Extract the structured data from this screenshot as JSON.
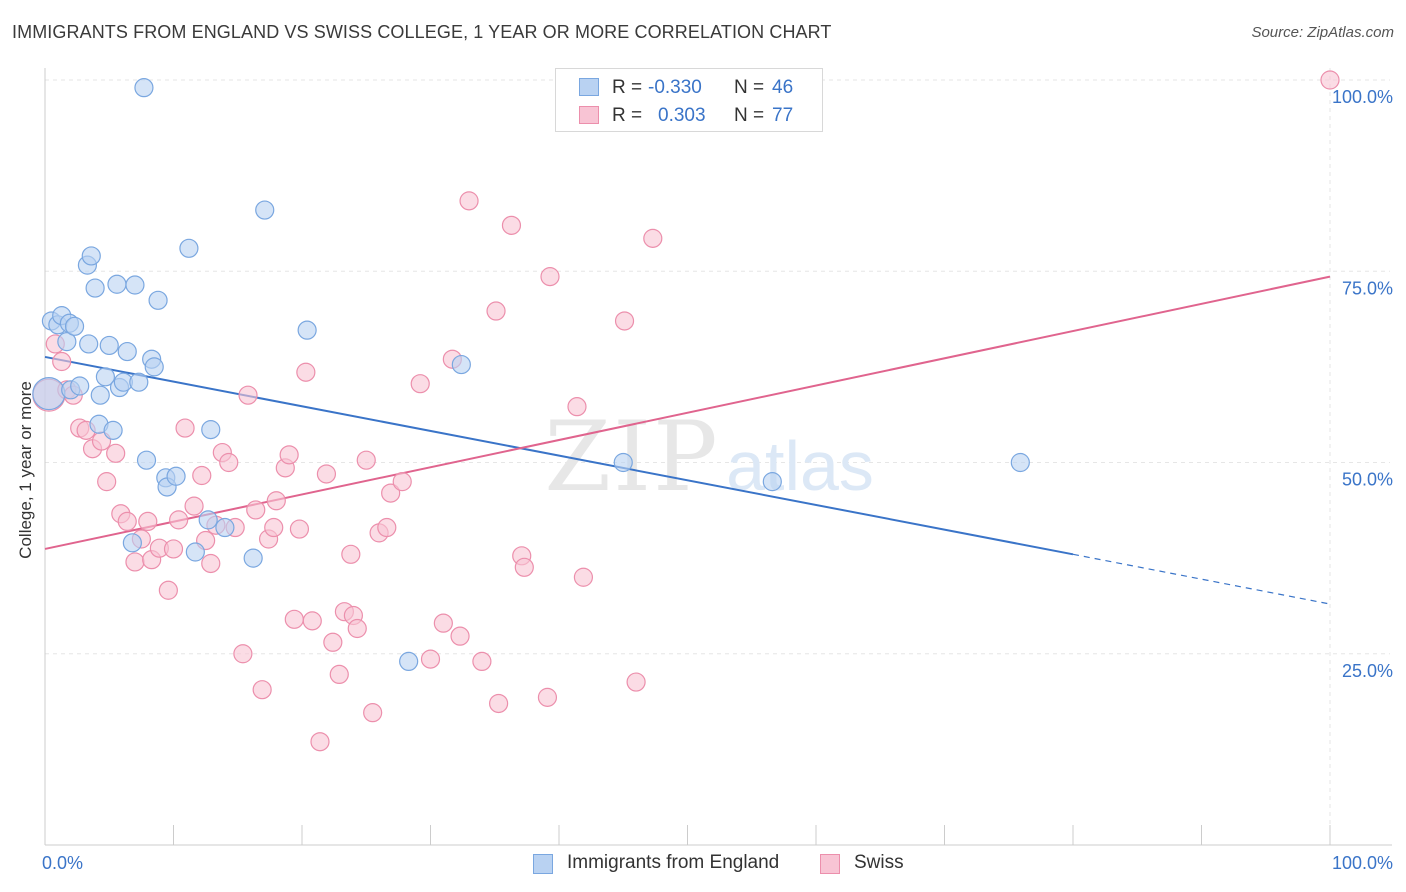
{
  "title": "IMMIGRANTS FROM ENGLAND VS SWISS COLLEGE, 1 YEAR OR MORE CORRELATION CHART",
  "source": "Source: ZipAtlas.com",
  "watermark": {
    "zip": "ZIP",
    "atlas": "atlas"
  },
  "legend": {
    "series": [
      {
        "name": "Immigrants from England",
        "r_label": "R =",
        "r_value": "-0.330",
        "n_label": "N =",
        "n_value": "46",
        "color": "#7aa7e0",
        "fill": "#b9d2f2"
      },
      {
        "name": "Swiss",
        "r_label": "R =",
        "r_value": "0.303",
        "n_label": "N =",
        "n_value": "77",
        "color": "#ec8fac",
        "fill": "#f8c4d4"
      }
    ]
  },
  "chart_data": {
    "type": "scatter",
    "title": "IMMIGRANTS FROM ENGLAND VS SWISS COLLEGE, 1 YEAR OR MORE CORRELATION CHART",
    "xlabel": "",
    "ylabel": "College, 1 year or more",
    "xlim": [
      0,
      100
    ],
    "ylim": [
      0,
      100
    ],
    "x_tick_labels": [
      "0.0%",
      "100.0%"
    ],
    "y_tick_values": [
      25,
      50,
      75,
      100
    ],
    "y_tick_labels": [
      "25.0%",
      "50.0%",
      "75.0%",
      "100.0%"
    ],
    "grid": true,
    "series": [
      {
        "name": "Immigrants from England",
        "color": "#3a74c8",
        "point_fill": "#b9d2f2",
        "point_stroke": "#7aa7e0",
        "trend": {
          "x0": 0,
          "y0": 63.8,
          "x1": 80,
          "y1": 38.0,
          "dash_to": 100,
          "dash_y": 31.5
        },
        "points": [
          [
            0.3,
            59.0,
            16
          ],
          [
            0.5,
            68.5,
            9
          ],
          [
            1.0,
            68.0,
            9
          ],
          [
            1.3,
            69.2,
            9
          ],
          [
            1.7,
            65.8,
            9
          ],
          [
            1.9,
            68.2,
            9
          ],
          [
            2.3,
            67.8,
            9
          ],
          [
            2.0,
            59.5,
            9
          ],
          [
            2.7,
            60.0,
            9
          ],
          [
            3.3,
            75.8,
            9
          ],
          [
            3.6,
            77.0,
            9
          ],
          [
            3.9,
            72.8,
            9
          ],
          [
            3.4,
            65.5,
            9
          ],
          [
            4.3,
            58.8,
            9
          ],
          [
            4.2,
            55.0,
            9
          ],
          [
            5.3,
            54.2,
            9
          ],
          [
            5.0,
            65.3,
            9
          ],
          [
            4.7,
            61.2,
            9
          ],
          [
            5.8,
            59.8,
            9
          ],
          [
            6.1,
            60.5,
            9
          ],
          [
            5.6,
            73.3,
            9
          ],
          [
            6.4,
            64.5,
            9
          ],
          [
            7.0,
            73.2,
            9
          ],
          [
            7.3,
            60.5,
            9
          ],
          [
            8.3,
            63.5,
            9
          ],
          [
            8.5,
            62.5,
            9
          ],
          [
            8.8,
            71.2,
            9
          ],
          [
            7.7,
            99.0,
            9
          ],
          [
            7.9,
            50.3,
            9
          ],
          [
            9.4,
            48.0,
            9
          ],
          [
            9.5,
            46.8,
            9
          ],
          [
            10.2,
            48.2,
            9
          ],
          [
            11.2,
            78.0,
            9
          ],
          [
            12.9,
            54.3,
            9
          ],
          [
            12.7,
            42.5,
            9
          ],
          [
            11.7,
            38.3,
            9
          ],
          [
            14.0,
            41.5,
            9
          ],
          [
            6.8,
            39.5,
            9
          ],
          [
            16.2,
            37.5,
            9
          ],
          [
            17.1,
            83.0,
            9
          ],
          [
            20.4,
            67.3,
            9
          ],
          [
            32.4,
            62.8,
            9
          ],
          [
            28.3,
            24.0,
            9
          ],
          [
            56.6,
            47.5,
            9
          ],
          [
            75.9,
            50.0,
            9
          ],
          [
            45.0,
            50.0,
            9
          ]
        ]
      },
      {
        "name": "Swiss",
        "color": "#e0648e",
        "point_fill": "#f8c4d4",
        "point_stroke": "#ec8fac",
        "trend": {
          "x0": 0,
          "y0": 38.7,
          "x1": 100,
          "y1": 74.3
        },
        "points": [
          [
            0.3,
            58.8,
            16
          ],
          [
            0.8,
            65.5,
            9
          ],
          [
            1.3,
            63.2,
            9
          ],
          [
            1.7,
            59.5,
            9
          ],
          [
            2.2,
            58.8,
            9
          ],
          [
            2.7,
            54.5,
            9
          ],
          [
            3.2,
            54.2,
            9
          ],
          [
            3.7,
            51.8,
            9
          ],
          [
            4.4,
            52.8,
            9
          ],
          [
            5.5,
            51.2,
            9
          ],
          [
            4.8,
            47.5,
            9
          ],
          [
            5.9,
            43.3,
            9
          ],
          [
            6.4,
            42.3,
            9
          ],
          [
            7.0,
            37.0,
            9
          ],
          [
            8.0,
            42.3,
            9
          ],
          [
            7.5,
            40.0,
            9
          ],
          [
            8.3,
            37.3,
            9
          ],
          [
            8.9,
            38.8,
            9
          ],
          [
            9.6,
            33.3,
            9
          ],
          [
            10.0,
            38.7,
            9
          ],
          [
            10.4,
            42.5,
            9
          ],
          [
            10.9,
            54.5,
            9
          ],
          [
            11.6,
            44.3,
            9
          ],
          [
            12.2,
            48.3,
            9
          ],
          [
            12.5,
            39.8,
            9
          ],
          [
            12.9,
            36.8,
            9
          ],
          [
            13.3,
            41.8,
            9
          ],
          [
            13.8,
            51.3,
            9
          ],
          [
            14.3,
            50.0,
            9
          ],
          [
            14.8,
            41.5,
            9
          ],
          [
            15.4,
            25.0,
            9
          ],
          [
            15.8,
            58.8,
            9
          ],
          [
            16.4,
            43.8,
            9
          ],
          [
            16.9,
            20.3,
            9
          ],
          [
            17.4,
            40.0,
            9
          ],
          [
            17.8,
            41.5,
            9
          ],
          [
            18.7,
            49.3,
            9
          ],
          [
            19.0,
            51.0,
            9
          ],
          [
            19.4,
            29.5,
            9
          ],
          [
            19.8,
            41.3,
            9
          ],
          [
            20.3,
            61.8,
            9
          ],
          [
            20.8,
            29.3,
            9
          ],
          [
            21.4,
            13.5,
            9
          ],
          [
            21.9,
            48.5,
            9
          ],
          [
            22.4,
            26.5,
            9
          ],
          [
            22.9,
            22.3,
            9
          ],
          [
            23.3,
            30.5,
            9
          ],
          [
            24.0,
            30.0,
            9
          ],
          [
            24.3,
            28.3,
            9
          ],
          [
            25.0,
            50.3,
            9
          ],
          [
            25.5,
            17.3,
            9
          ],
          [
            26.0,
            40.8,
            9
          ],
          [
            26.6,
            41.5,
            9
          ],
          [
            26.9,
            46.0,
            9
          ],
          [
            27.8,
            47.5,
            9
          ],
          [
            29.2,
            60.3,
            9
          ],
          [
            30.0,
            24.3,
            9
          ],
          [
            31.0,
            29.0,
            9
          ],
          [
            31.7,
            63.5,
            9
          ],
          [
            32.3,
            27.3,
            9
          ],
          [
            33.0,
            84.2,
            9
          ],
          [
            34.0,
            24.0,
            9
          ],
          [
            35.1,
            69.8,
            9
          ],
          [
            35.3,
            18.5,
            9
          ],
          [
            36.3,
            81.0,
            9
          ],
          [
            37.1,
            37.8,
            9
          ],
          [
            37.3,
            36.3,
            9
          ],
          [
            39.3,
            74.3,
            9
          ],
          [
            39.1,
            19.3,
            9
          ],
          [
            41.4,
            57.3,
            9
          ],
          [
            41.9,
            35.0,
            9
          ],
          [
            45.1,
            68.5,
            9
          ],
          [
            46.0,
            21.3,
            9
          ],
          [
            47.3,
            79.3,
            9
          ],
          [
            100.0,
            100.0,
            9
          ],
          [
            18.0,
            45.0,
            9
          ],
          [
            23.8,
            38.0,
            9
          ]
        ]
      }
    ]
  }
}
